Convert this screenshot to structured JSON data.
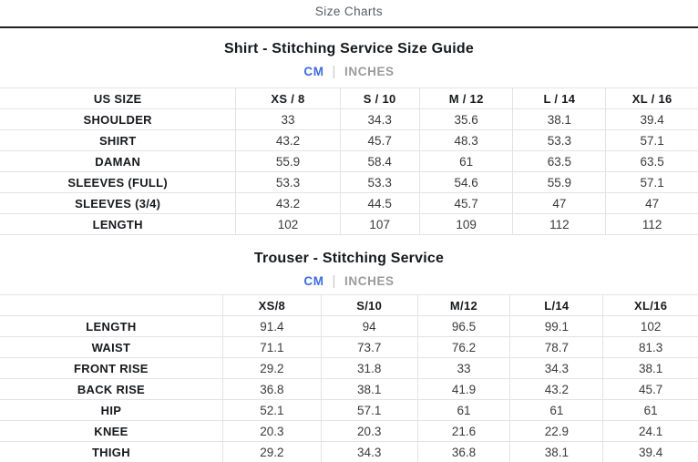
{
  "page": {
    "breadcrumb": "Size Charts"
  },
  "colors": {
    "active_unit": "#3d6be0",
    "inactive_unit": "#9b9b9b",
    "header_rule": "#212121",
    "table_border": "#e3e3e3"
  },
  "sections": [
    {
      "title": "Shirt - Stitching Service Size Guide",
      "units": {
        "active": "CM",
        "divider": "|",
        "inactive": "INCHES"
      },
      "table": {
        "headers": [
          "US SIZE",
          "XS / 8",
          "S / 10",
          "M / 12",
          "L / 14",
          "XL / 16"
        ],
        "rows": [
          {
            "label": "SHOULDER",
            "values": [
              "33",
              "34.3",
              "35.6",
              "38.1",
              "39.4"
            ]
          },
          {
            "label": "SHIRT",
            "values": [
              "43.2",
              "45.7",
              "48.3",
              "53.3",
              "57.1"
            ]
          },
          {
            "label": "DAMAN",
            "values": [
              "55.9",
              "58.4",
              "61",
              "63.5",
              "63.5"
            ]
          },
          {
            "label": "SLEEVES (FULL)",
            "values": [
              "53.3",
              "53.3",
              "54.6",
              "55.9",
              "57.1"
            ]
          },
          {
            "label": "SLEEVES (3/4)",
            "values": [
              "43.2",
              "44.5",
              "45.7",
              "47",
              "47"
            ]
          },
          {
            "label": "LENGTH",
            "values": [
              "102",
              "107",
              "109",
              "112",
              "112"
            ]
          }
        ]
      }
    },
    {
      "title": "Trouser - Stitching Service",
      "units": {
        "active": "CM",
        "divider": "|",
        "inactive": "INCHES"
      },
      "table": {
        "headers": [
          "",
          "XS/8",
          "S/10",
          "M/12",
          "L/14",
          "XL/16"
        ],
        "rows": [
          {
            "label": "LENGTH",
            "values": [
              "91.4",
              "94",
              "96.5",
              "99.1",
              "102"
            ]
          },
          {
            "label": "WAIST",
            "values": [
              "71.1",
              "73.7",
              "76.2",
              "78.7",
              "81.3"
            ]
          },
          {
            "label": "FRONT RISE",
            "values": [
              "29.2",
              "31.8",
              "33",
              "34.3",
              "38.1"
            ]
          },
          {
            "label": "BACK RISE",
            "values": [
              "36.8",
              "38.1",
              "41.9",
              "43.2",
              "45.7"
            ]
          },
          {
            "label": "HIP",
            "values": [
              "52.1",
              "57.1",
              "61",
              "61",
              "61"
            ]
          },
          {
            "label": "KNEE",
            "values": [
              "20.3",
              "20.3",
              "21.6",
              "22.9",
              "24.1"
            ]
          },
          {
            "label": "THIGH",
            "values": [
              "29.2",
              "34.3",
              "36.8",
              "38.1",
              "39.4"
            ]
          }
        ]
      }
    }
  ]
}
